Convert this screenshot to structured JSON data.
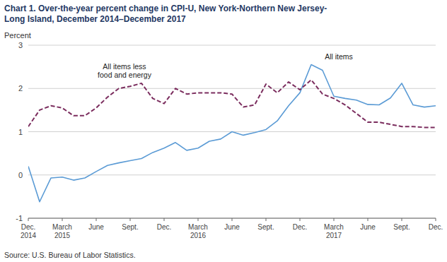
{
  "chart_data": {
    "type": "line",
    "title": "Chart 1. Over-the-year percent change in CPI-U, New York-Northern New Jersey-\nLong Island, December 2014–December 2017",
    "y_label": "Percent",
    "source": "Source: U.S. Bureau of Labor Statistics.",
    "categories": [
      "Dec.\n2014",
      null,
      null,
      "March\n2015",
      null,
      null,
      "June",
      null,
      null,
      "Sept.",
      null,
      null,
      "Dec.",
      null,
      null,
      "March\n2016",
      null,
      null,
      "June",
      null,
      null,
      "Sept.",
      null,
      null,
      "Dec.",
      null,
      null,
      "March\n2017",
      null,
      null,
      "June",
      null,
      null,
      "Sept.",
      null,
      null,
      "Dec."
    ],
    "series": [
      {
        "name": "All items",
        "color": "#5B9BD5",
        "line_style": "solid",
        "values": [
          0.2,
          -0.62,
          -0.07,
          -0.05,
          -0.12,
          -0.07,
          0.08,
          0.22,
          0.28,
          0.33,
          0.38,
          0.52,
          0.62,
          0.75,
          0.57,
          0.62,
          0.78,
          0.83,
          1.0,
          0.92,
          0.98,
          1.05,
          1.25,
          1.6,
          1.9,
          2.55,
          2.42,
          1.82,
          1.77,
          1.73,
          1.63,
          1.62,
          1.78,
          2.12,
          1.62,
          1.57,
          1.6
        ]
      },
      {
        "name": "All items less\nfood and energy",
        "color": "#7B2D5E",
        "line_style": "dashed",
        "values": [
          1.12,
          1.5,
          1.6,
          1.55,
          1.37,
          1.37,
          1.55,
          1.8,
          2.0,
          2.05,
          2.12,
          1.77,
          1.65,
          2.0,
          1.87,
          1.9,
          1.9,
          1.9,
          1.87,
          1.57,
          1.62,
          2.1,
          1.9,
          2.15,
          1.97,
          2.2,
          1.87,
          1.77,
          1.62,
          1.42,
          1.22,
          1.22,
          1.17,
          1.12,
          1.12,
          1.1,
          1.1
        ]
      }
    ],
    "ylim": [
      -1,
      3
    ],
    "yticks": [
      -1,
      0,
      1,
      2,
      3
    ],
    "grid": true
  }
}
